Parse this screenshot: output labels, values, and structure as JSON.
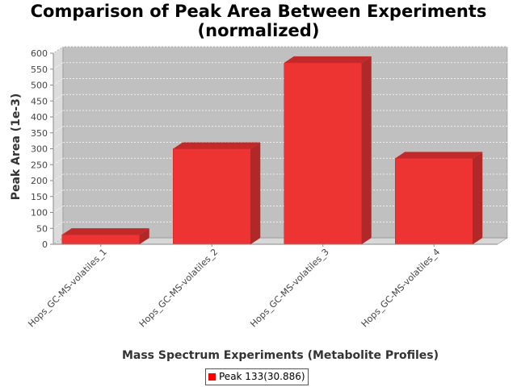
{
  "chart_data": {
    "type": "bar",
    "title_line1": "Comparison of Peak Area Between Experiments",
    "title_line2": "(normalized)",
    "xlabel": "Mass Spectrum Experiments (Metabolite Profiles)",
    "ylabel": "Peak Area (1e-3)",
    "categories": [
      "Hops_GC-MS-volatiles_1",
      "Hops_GC-MS-volatiles_2",
      "Hops_GC-MS-volatiles_3",
      "Hops_GC-MS-volatiles_4"
    ],
    "series": [
      {
        "name": "Peak 133(30.886)",
        "values": [
          30,
          300,
          570,
          270
        ],
        "color": "#ff0000"
      }
    ],
    "ylim": [
      0,
      600
    ],
    "yticks": [
      0,
      50,
      100,
      150,
      200,
      250,
      300,
      350,
      400,
      450,
      500,
      550,
      600
    ],
    "grid": true,
    "legend_position": "bottom-center",
    "style": "3d",
    "plot_background": "#c0c0c0"
  }
}
